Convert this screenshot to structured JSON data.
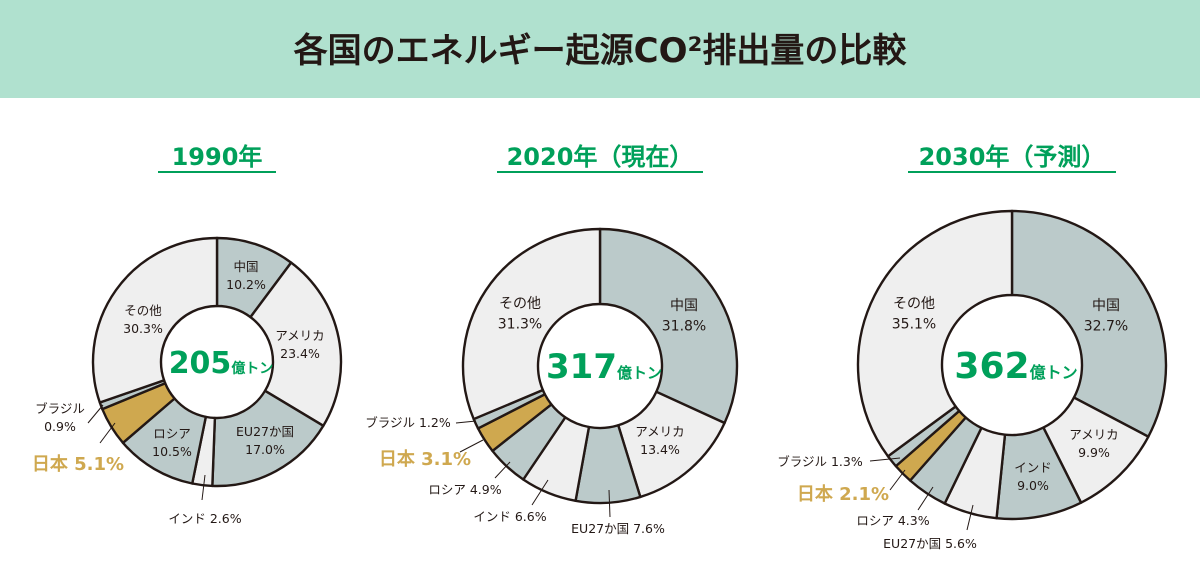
{
  "title": "各国のエネルギー起源CO²排出量の比較",
  "colors": {
    "header_bg": "#b0e1cf",
    "accent_green": "#00a05a",
    "japan_gold": "#cfa84f",
    "slice_gray": "#bbcaca",
    "slice_light": "#efefef",
    "outline": "#231815"
  },
  "chart_data": [
    {
      "type": "pie",
      "title": "1990年",
      "total_value": "205",
      "total_unit": "億トン",
      "slices": [
        {
          "label": "中国",
          "value": 10.2,
          "value_label": "10.2%",
          "color": "#bbcaca"
        },
        {
          "label": "アメリカ",
          "value": 23.4,
          "value_label": "23.4%",
          "color": "#efefef"
        },
        {
          "label": "EU27か国",
          "value": 17.0,
          "value_label": "17.0%",
          "color": "#bbcaca"
        },
        {
          "label": "インド",
          "value": 2.6,
          "value_label": "2.6%",
          "color": "#efefef"
        },
        {
          "label": "ロシア",
          "value": 10.5,
          "value_label": "10.5%",
          "color": "#bbcaca"
        },
        {
          "label": "日本",
          "value": 5.1,
          "value_label": "5.1%",
          "color": "#cfa84f"
        },
        {
          "label": "ブラジル",
          "value": 0.9,
          "value_label": "0.9%",
          "color": "#bbcaca"
        },
        {
          "label": "その他",
          "value": 30.3,
          "value_label": "30.3%",
          "color": "#efefef"
        }
      ]
    },
    {
      "type": "pie",
      "title": "2020年（現在）",
      "total_value": "317",
      "total_unit": "億トン",
      "slices": [
        {
          "label": "中国",
          "value": 31.8,
          "value_label": "31.8%",
          "color": "#bbcaca"
        },
        {
          "label": "アメリカ",
          "value": 13.4,
          "value_label": "13.4%",
          "color": "#efefef"
        },
        {
          "label": "EU27か国",
          "value": 7.6,
          "value_label": "7.6%",
          "color": "#bbcaca"
        },
        {
          "label": "インド",
          "value": 6.6,
          "value_label": "6.6%",
          "color": "#efefef"
        },
        {
          "label": "ロシア",
          "value": 4.9,
          "value_label": "4.9%",
          "color": "#bbcaca"
        },
        {
          "label": "日本",
          "value": 3.1,
          "value_label": "3.1%",
          "color": "#cfa84f"
        },
        {
          "label": "ブラジル",
          "value": 1.2,
          "value_label": "1.2%",
          "color": "#bbcaca"
        },
        {
          "label": "その他",
          "value": 31.3,
          "value_label": "31.3%",
          "color": "#efefef"
        }
      ]
    },
    {
      "type": "pie",
      "title": "2030年（予測）",
      "total_value": "362",
      "total_unit": "億トン",
      "slices": [
        {
          "label": "中国",
          "value": 32.7,
          "value_label": "32.7%",
          "color": "#bbcaca"
        },
        {
          "label": "アメリカ",
          "value": 9.9,
          "value_label": "9.9%",
          "color": "#efefef"
        },
        {
          "label": "インド",
          "value": 9.0,
          "value_label": "9.0%",
          "color": "#bbcaca"
        },
        {
          "label": "EU27か国",
          "value": 5.6,
          "value_label": "5.6%",
          "color": "#efefef"
        },
        {
          "label": "ロシア",
          "value": 4.3,
          "value_label": "4.3%",
          "color": "#bbcaca"
        },
        {
          "label": "日本",
          "value": 2.1,
          "value_label": "2.1%",
          "color": "#cfa84f"
        },
        {
          "label": "ブラジル",
          "value": 1.3,
          "value_label": "1.3%",
          "color": "#bbcaca"
        },
        {
          "label": "その他",
          "value": 35.1,
          "value_label": "35.1%",
          "color": "#efefef"
        }
      ]
    }
  ]
}
